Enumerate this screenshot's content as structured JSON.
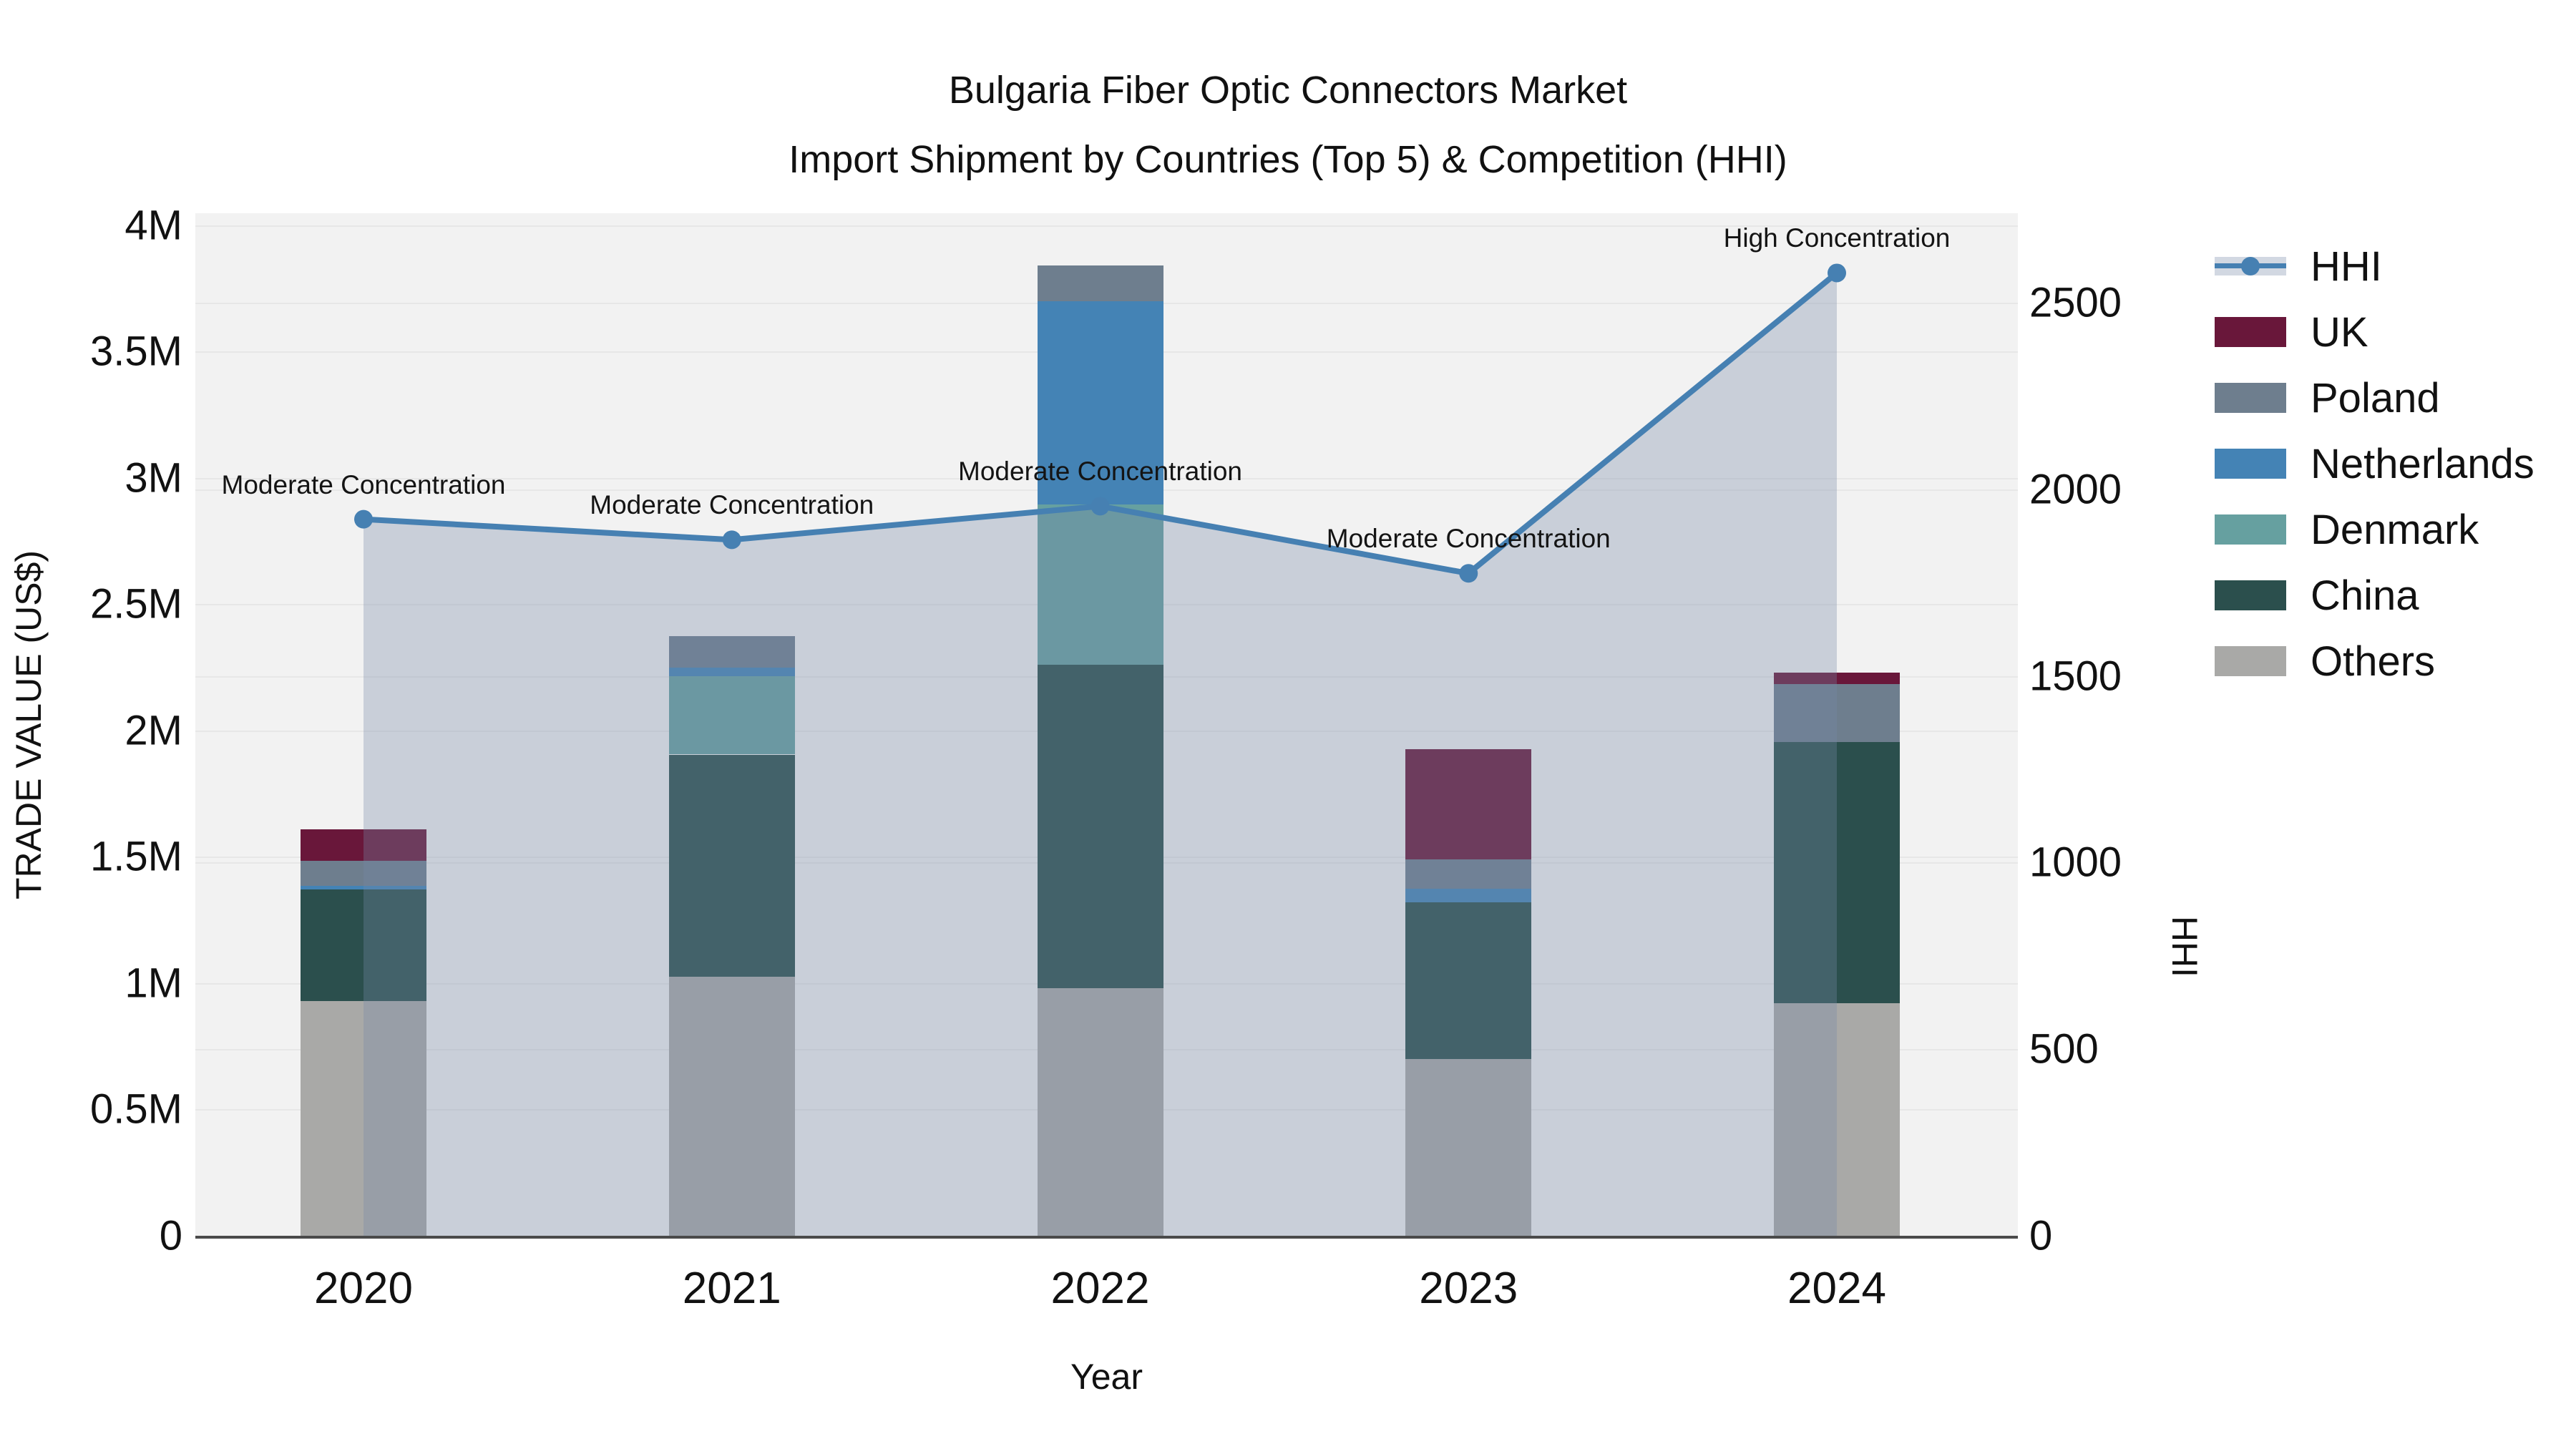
{
  "title": {
    "line1": "Bulgaria Fiber Optic Connectors Market",
    "line2": "Import Shipment by Countries (Top 5) & Competition (HHI)"
  },
  "axis_titles": {
    "left": "TRADE VALUE (US$)",
    "right": "HHI",
    "bottom": "Year"
  },
  "colors": {
    "plot_bg": "#f2f2f2",
    "grid": "#e7e7e7",
    "axis_line": "#4a4a4a",
    "text": "#111111",
    "hhi_line": "#4680b2",
    "area_fill": "rgba(118,136,166,0.33)"
  },
  "legend": {
    "items": [
      {
        "label": "HHI",
        "type": "line",
        "color": "#4680b2"
      },
      {
        "label": "UK",
        "type": "swatch",
        "color": "#69173a"
      },
      {
        "label": "Poland",
        "type": "swatch",
        "color": "#6e7e8e"
      },
      {
        "label": "Netherlands",
        "type": "swatch",
        "color": "#4483b5"
      },
      {
        "label": "Denmark",
        "type": "swatch",
        "color": "#66a0a0"
      },
      {
        "label": "China",
        "type": "swatch",
        "color": "#2b4f4d"
      },
      {
        "label": "Others",
        "type": "swatch",
        "color": "#a9a9a7"
      }
    ]
  },
  "chart_data": {
    "type": "bar+line",
    "title": "Bulgaria Fiber Optic Connectors Market — Import Shipment by Countries (Top 5) & Competition (HHI)",
    "categories": [
      "2020",
      "2021",
      "2022",
      "2023",
      "2024"
    ],
    "bar_stack_order_bottom_to_top": [
      "Others",
      "China",
      "Denmark",
      "Netherlands",
      "Poland",
      "UK"
    ],
    "series": [
      {
        "name": "Others",
        "color": "#a9a9a7",
        "values": [
          930000,
          1025000,
          980000,
          700000,
          920000
        ]
      },
      {
        "name": "China",
        "color": "#2b4f4d",
        "values": [
          440000,
          880000,
          1280000,
          620000,
          1035000
        ]
      },
      {
        "name": "Denmark",
        "color": "#66a0a0",
        "values": [
          0,
          310000,
          635000,
          0,
          0
        ]
      },
      {
        "name": "Netherlands",
        "color": "#4483b5",
        "values": [
          15000,
          35000,
          805000,
          55000,
          0
        ]
      },
      {
        "name": "Poland",
        "color": "#6e7e8e",
        "values": [
          100000,
          125000,
          140000,
          115000,
          230000
        ]
      },
      {
        "name": "UK",
        "color": "#69173a",
        "values": [
          125000,
          0,
          0,
          435000,
          45000
        ]
      }
    ],
    "bar_totals": [
      1610000,
      2375000,
      3840000,
      1925000,
      2230000
    ],
    "line_series": {
      "name": "HHI",
      "axis": "right",
      "color": "#4680b2",
      "values": [
        1920,
        1865,
        1955,
        1775,
        2580
      ],
      "area_fill": true
    },
    "annotations": [
      {
        "x": "2020",
        "text": "Moderate Concentration"
      },
      {
        "x": "2021",
        "text": "Moderate Concentration"
      },
      {
        "x": "2022",
        "text": "Moderate Concentration"
      },
      {
        "x": "2023",
        "text": "Moderate Concentration"
      },
      {
        "x": "2024",
        "text": "High Concentration"
      }
    ],
    "xlabel": "Year",
    "ylabel": "TRADE VALUE (US$)",
    "y2label": "HHI",
    "ylim_left": [
      0,
      4048000
    ],
    "ylim_right": [
      0,
      2740
    ],
    "yticks_left": [
      {
        "v": 0,
        "label": "0"
      },
      {
        "v": 500000,
        "label": "0.5M"
      },
      {
        "v": 1000000,
        "label": "1M"
      },
      {
        "v": 1500000,
        "label": "1.5M"
      },
      {
        "v": 2000000,
        "label": "2M"
      },
      {
        "v": 2500000,
        "label": "2.5M"
      },
      {
        "v": 3000000,
        "label": "3M"
      },
      {
        "v": 3500000,
        "label": "3.5M"
      },
      {
        "v": 4000000,
        "label": "4M"
      }
    ],
    "yticks_right": [
      {
        "v": 0,
        "label": "0"
      },
      {
        "v": 500,
        "label": "500"
      },
      {
        "v": 1000,
        "label": "1000"
      },
      {
        "v": 1500,
        "label": "1500"
      },
      {
        "v": 2000,
        "label": "2000"
      },
      {
        "v": 2500,
        "label": "2500"
      }
    ],
    "grid": true,
    "legend_position": "right"
  }
}
